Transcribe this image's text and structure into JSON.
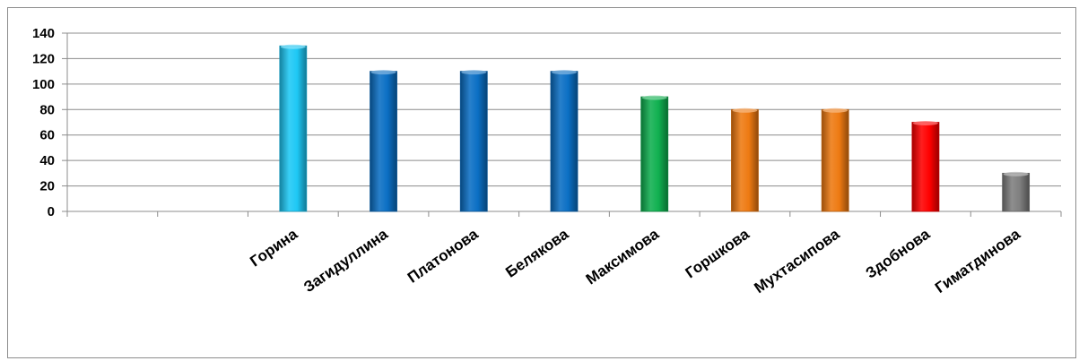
{
  "chart_data": {
    "type": "bar",
    "categories": [
      "",
      "",
      "Горина",
      "Загидуллина",
      "Платонова",
      "Белякова",
      "Максимова",
      "Горшкова",
      "Мухтасипова",
      "Здобнова",
      "Гиматдинова"
    ],
    "values": [
      null,
      null,
      130,
      110,
      110,
      110,
      90,
      80,
      80,
      70,
      30
    ],
    "bar_colors": [
      "#00b0f0",
      "#00b0f0",
      "#1ec8f5",
      "#0b6fc4",
      "#0b6fc4",
      "#0b6fc4",
      "#10b050",
      "#ee7a12",
      "#ee7a12",
      "#ff0000",
      "#7f7f7f"
    ],
    "ylim": [
      0,
      140
    ],
    "yticks": [
      0,
      20,
      40,
      60,
      80,
      100,
      120,
      140
    ],
    "grid": true,
    "legend": "none",
    "title": "",
    "xlabel": "",
    "ylabel": ""
  }
}
